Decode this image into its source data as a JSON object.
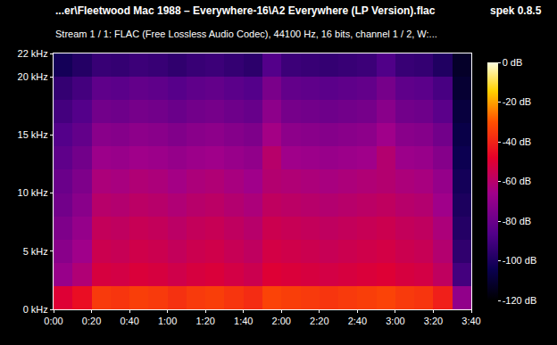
{
  "chart_data": {
    "type": "heatmap",
    "title": "...er\\Fleetwood Mac 1988 – Everywhere-16\\A2 Everywhere (LP Version).flac",
    "subtitle": "Stream 1 / 1: FLAC (Free Lossless Audio Codec), 44100 Hz, 16 bits, channel 1 / 2, W:...",
    "annotations": [
      "spek 0.8.5"
    ],
    "grid": false,
    "x": [
      5,
      15,
      25,
      35,
      45,
      55,
      65,
      75,
      85,
      95,
      105,
      115,
      125,
      135,
      145,
      155,
      165,
      175,
      185,
      195,
      205,
      215
    ],
    "y": [
      1,
      3,
      5,
      7,
      9,
      11,
      13,
      15,
      17,
      19,
      21
    ],
    "z": [
      [
        -50,
        -45,
        -35,
        -36,
        -34,
        -35,
        -37,
        -35,
        -34,
        -36,
        -38,
        -33,
        -34,
        -35,
        -36,
        -35,
        -34,
        -33,
        -35,
        -36,
        -41,
        -70
      ],
      [
        -68,
        -62,
        -52,
        -53,
        -51,
        -52,
        -54,
        -52,
        -51,
        -53,
        -55,
        -50,
        -51,
        -52,
        -53,
        -52,
        -51,
        -50,
        -52,
        -53,
        -58,
        -90
      ],
      [
        -72,
        -66,
        -55,
        -56,
        -54,
        -55,
        -57,
        -55,
        -54,
        -56,
        -58,
        -53,
        -54,
        -55,
        -56,
        -55,
        -54,
        -53,
        -55,
        -56,
        -61,
        -95
      ],
      [
        -75,
        -69,
        -57,
        -58,
        -56,
        -57,
        -59,
        -57,
        -56,
        -58,
        -60,
        -55,
        -56,
        -57,
        -58,
        -57,
        -56,
        -55,
        -57,
        -58,
        -63,
        -98
      ],
      [
        -78,
        -72,
        -60,
        -61,
        -59,
        -60,
        -62,
        -60,
        -59,
        -61,
        -63,
        -58,
        -59,
        -60,
        -61,
        -60,
        -59,
        -58,
        -60,
        -61,
        -66,
        -100
      ],
      [
        -80,
        -75,
        -63,
        -64,
        -62,
        -63,
        -65,
        -63,
        -62,
        -64,
        -66,
        -61,
        -62,
        -63,
        -64,
        -63,
        -62,
        -61,
        -63,
        -64,
        -69,
        -102
      ],
      [
        -83,
        -78,
        -67,
        -68,
        -66,
        -67,
        -69,
        -67,
        -66,
        -68,
        -70,
        -60,
        -66,
        -67,
        -68,
        -67,
        -66,
        -61,
        -67,
        -68,
        -73,
        -104
      ],
      [
        -86,
        -82,
        -72,
        -73,
        -71,
        -72,
        -74,
        -72,
        -71,
        -73,
        -75,
        -65,
        -71,
        -72,
        -73,
        -72,
        -71,
        -66,
        -72,
        -73,
        -78,
        -106
      ],
      [
        -90,
        -86,
        -78,
        -79,
        -77,
        -78,
        -80,
        -78,
        -77,
        -79,
        -81,
        -71,
        -77,
        -78,
        -79,
        -78,
        -77,
        -72,
        -78,
        -79,
        -84,
        -108
      ],
      [
        -94,
        -90,
        -83,
        -84,
        -82,
        -83,
        -85,
        -83,
        -82,
        -84,
        -86,
        -76,
        -82,
        -83,
        -84,
        -83,
        -82,
        -77,
        -83,
        -84,
        -89,
        -110
      ],
      [
        -102,
        -98,
        -93,
        -94,
        -92,
        -93,
        -95,
        -93,
        -92,
        -94,
        -96,
        -86,
        -92,
        -93,
        -94,
        -93,
        -92,
        -87,
        -93,
        -94,
        -99,
        -112
      ]
    ],
    "xlim": [
      0,
      220
    ],
    "xticks": [
      {
        "value": 0,
        "label": "0:00"
      },
      {
        "value": 20,
        "label": "0:20"
      },
      {
        "value": 40,
        "label": "0:40"
      },
      {
        "value": 60,
        "label": "1:00"
      },
      {
        "value": 80,
        "label": "1:20"
      },
      {
        "value": 100,
        "label": "1:40"
      },
      {
        "value": 120,
        "label": "2:00"
      },
      {
        "value": 140,
        "label": "2:20"
      },
      {
        "value": 160,
        "label": "2:40"
      },
      {
        "value": 180,
        "label": "3:00"
      },
      {
        "value": 200,
        "label": "3:20"
      },
      {
        "value": 220,
        "label": "3:40"
      }
    ],
    "ylim": [
      0,
      22
    ],
    "yticks": [
      {
        "value": 0,
        "label": "0 kHz"
      },
      {
        "value": 5,
        "label": "5 kHz"
      },
      {
        "value": 10,
        "label": "10 kHz"
      },
      {
        "value": 15,
        "label": "15 kHz"
      },
      {
        "value": 20,
        "label": "20 kHz"
      },
      {
        "value": 22,
        "label": "22 kHz"
      }
    ],
    "colorbar": {
      "range": [
        -120,
        0
      ],
      "ticks": [
        {
          "value": 0,
          "label": "0 dB"
        },
        {
          "value": -20,
          "label": "-20 dB"
        },
        {
          "value": -40,
          "label": "-40 dB"
        },
        {
          "value": -60,
          "label": "-60 dB"
        },
        {
          "value": -80,
          "label": "-80 dB"
        },
        {
          "value": -100,
          "label": "-100 dB"
        },
        {
          "value": -120,
          "label": "-120 dB"
        }
      ]
    }
  }
}
